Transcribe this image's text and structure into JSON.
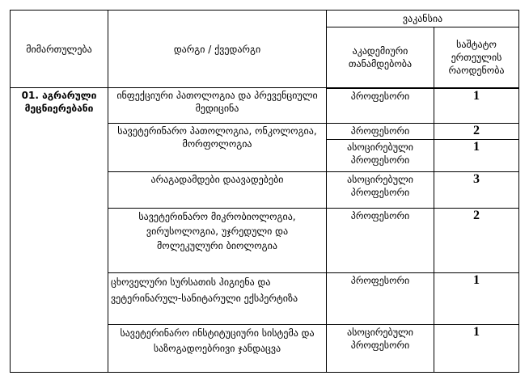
{
  "header": {
    "direction": "მიმართულება",
    "field": "დარგი / ქვედარგი",
    "vacancy": "ვაკანსია",
    "position": "აკადემიური თანამდებობა",
    "count": "საშტატო ერთეულის რაოდენობა"
  },
  "direction": "01. აგრარული მეცნიერებანი",
  "rows": [
    {
      "field": "ინფექციური პათოლოგია და პრევენციული მედიცინა",
      "positions": [
        {
          "title": "პროფესორი",
          "count": "1"
        }
      ]
    },
    {
      "field": "სავეტერინარო პათოლოგია, ონკოლოგია, მორფოლოგია",
      "positions": [
        {
          "title": "პროფესორი",
          "count": "2"
        },
        {
          "title": "ასოცირებული პროფესორი",
          "count": "1"
        }
      ]
    },
    {
      "field": "არაგადამდები დაავადებები",
      "positions": [
        {
          "title": "ასოცირებული პროფესორი",
          "count": "3"
        }
      ]
    },
    {
      "field": "სავეტერინარო მიკრობიოლოგია, ვირუსოლოგია, უჯრედული და მოლეკულური ბიოლოგია",
      "positions": [
        {
          "title": "პროფესორი",
          "count": "2"
        }
      ]
    },
    {
      "field": "ცხოველური სურსათის ჰიგიენა და ვეტერინარულ-სანიტარული ექსპერტიზა",
      "positions": [
        {
          "title": "პროფესორი",
          "count": "1"
        }
      ]
    },
    {
      "field": "სავეტერინარო ინსტიტუციური სისტემა და საზოგადოებრივი ჯანდაცვა",
      "positions": [
        {
          "title": "ასოცირებული პროფესორი",
          "count": "1"
        }
      ]
    }
  ]
}
